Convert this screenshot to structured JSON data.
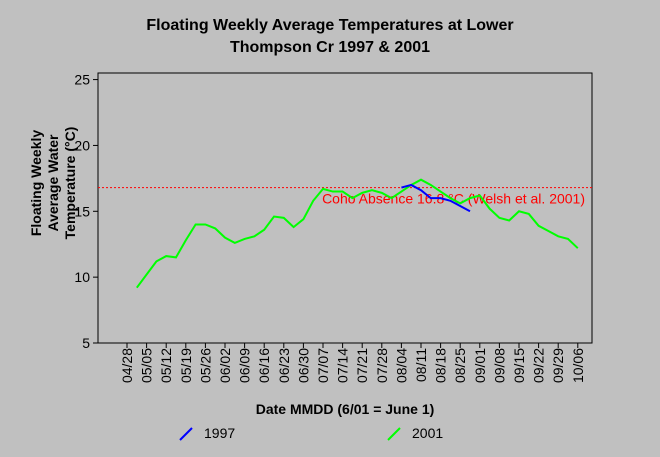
{
  "chart_data": {
    "type": "line",
    "title": [
      "Floating Weekly Average Temperatures at Lower",
      "Thompson Cr 1997 & 2001"
    ],
    "x_label": "Date MMDD (6/01 = June 1)",
    "y_label": [
      "Floating Weekly",
      "Average Water",
      "Temperature (°C)"
    ],
    "categories": [
      "04/28",
      null,
      "05/05",
      null,
      "05/12",
      null,
      "05/19",
      null,
      "05/26",
      null,
      "06/02",
      null,
      "06/09",
      null,
      "06/16",
      null,
      "06/23",
      null,
      "06/30",
      null,
      "07/07",
      null,
      "07/14",
      null,
      "07/21",
      null,
      "07/28",
      null,
      "08/04",
      null,
      "08/11",
      null,
      "08/18",
      null,
      "08/25",
      null,
      "09/01",
      null,
      "09/08",
      null,
      "09/15",
      null,
      "09/22",
      null,
      "09/29",
      null,
      "10/06"
    ],
    "series": [
      {
        "name": "1997",
        "color": "#0000ff",
        "values": [
          null,
          null,
          null,
          null,
          null,
          null,
          null,
          null,
          null,
          null,
          null,
          null,
          null,
          null,
          null,
          null,
          null,
          null,
          null,
          null,
          null,
          null,
          null,
          null,
          null,
          null,
          null,
          null,
          16.8,
          17.0,
          16.6,
          16.0,
          16.0,
          15.8,
          15.4,
          15.0,
          null,
          null,
          null,
          null,
          null,
          null,
          null,
          null,
          null,
          null,
          null
        ]
      },
      {
        "name": "2001",
        "color": "#00ff00",
        "values": [
          null,
          9.2,
          10.2,
          11.2,
          11.6,
          11.5,
          12.8,
          14.0,
          14.0,
          13.7,
          13.0,
          12.6,
          12.9,
          13.1,
          13.6,
          14.6,
          14.5,
          13.8,
          14.4,
          15.8,
          16.7,
          16.5,
          16.5,
          16.0,
          16.4,
          16.6,
          16.4,
          16.0,
          16.5,
          17.0,
          17.4,
          17.0,
          16.5,
          16.0,
          15.6,
          16.0,
          16.2,
          15.2,
          14.5,
          14.3,
          15.0,
          14.8,
          13.9,
          13.5,
          13.1,
          12.9,
          12.2
        ]
      }
    ],
    "reference_line": {
      "value": 16.8,
      "label": "Coho Absence 16.8 °C (Welsh et al. 2001)",
      "color": "#ff0000"
    },
    "ylim": [
      5,
      25.5
    ],
    "yticks": [
      5,
      10,
      15,
      20,
      25
    ]
  }
}
